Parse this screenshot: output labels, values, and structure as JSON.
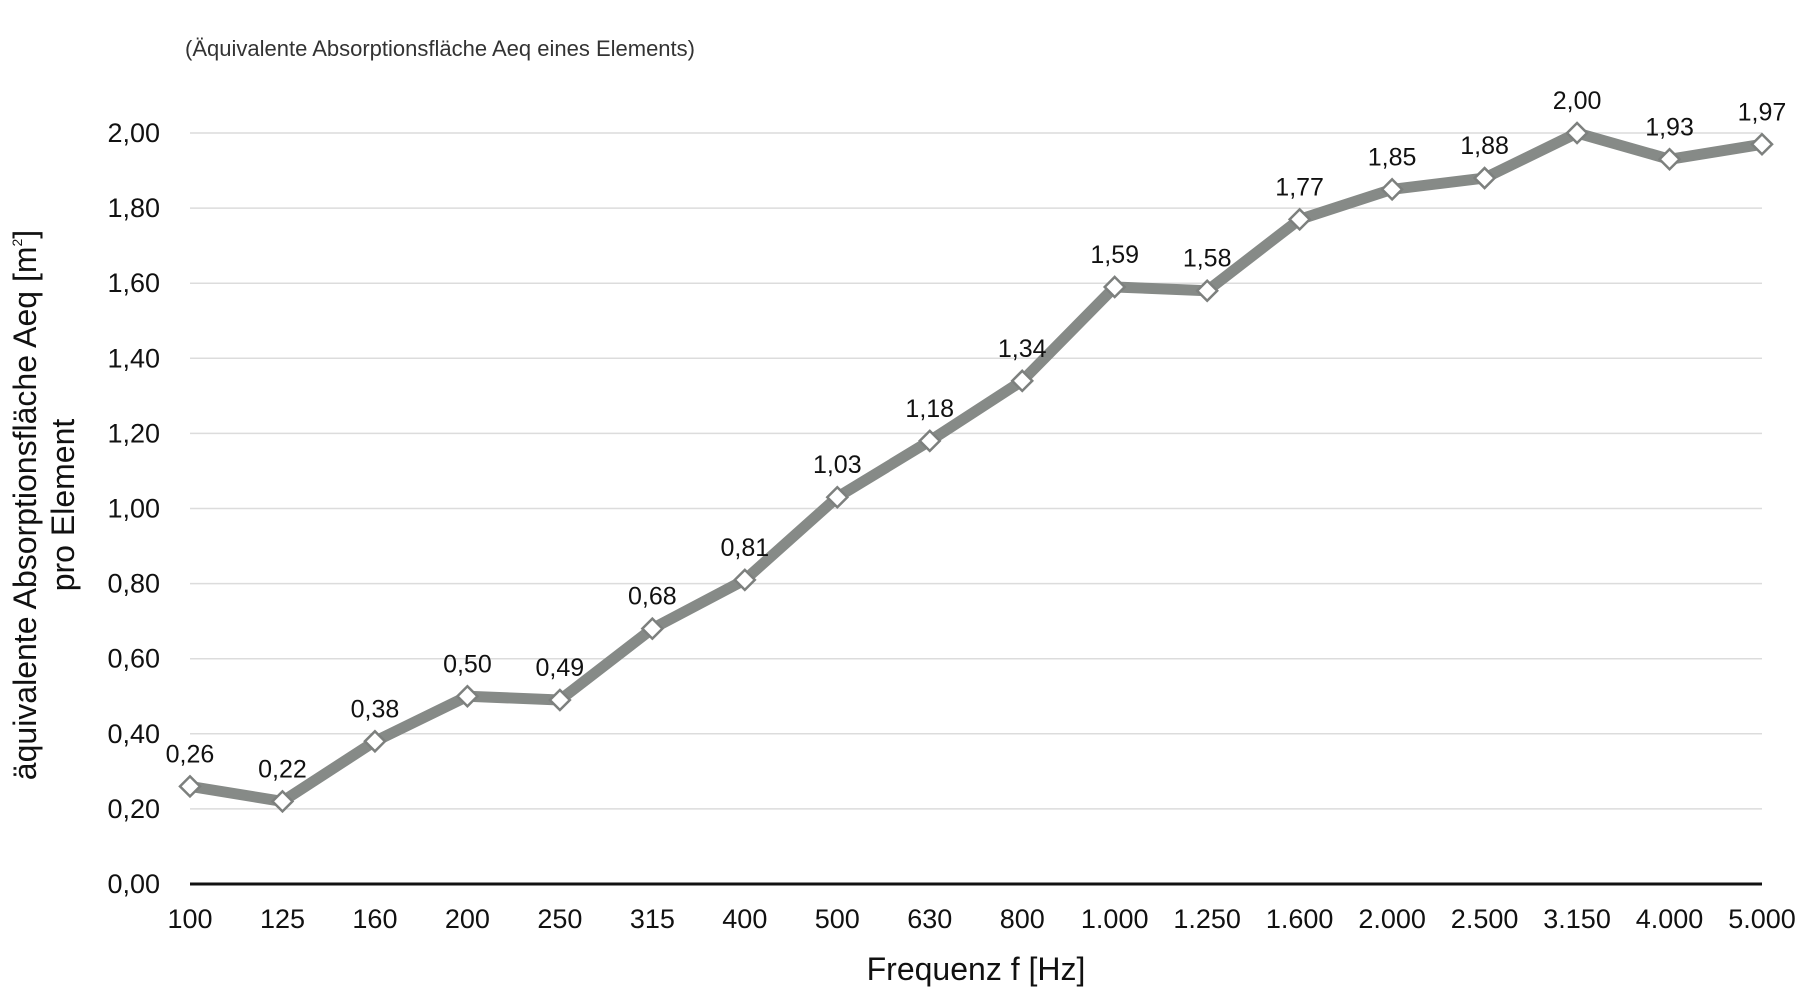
{
  "chart_data": {
    "type": "line",
    "subtitle": "(Äquivalente Absorptionsfläche Aeq eines Elements)",
    "xlabel": "Frequenz f [Hz]",
    "ylabel_line1": "äquivalente Absorptionsfläche Aeq [m",
    "ylabel_sup": "2",
    "ylabel_close": "]",
    "ylabel_line2": "pro Element",
    "categories": [
      "100",
      "125",
      "160",
      "200",
      "250",
      "315",
      "400",
      "500",
      "630",
      "800",
      "1.000",
      "1.250",
      "1.600",
      "2.000",
      "2.500",
      "3.150",
      "4.000",
      "5.000"
    ],
    "series": [
      {
        "values": [
          0.26,
          0.22,
          0.38,
          0.5,
          0.49,
          0.68,
          0.81,
          1.03,
          1.18,
          1.34,
          1.59,
          1.58,
          1.77,
          1.85,
          1.88,
          2.0,
          1.93,
          1.97
        ],
        "labels": [
          "0,26",
          "0,22",
          "0,38",
          "0,50",
          "0,49",
          "0,68",
          "0,81",
          "1,03",
          "1,18",
          "1,34",
          "1,59",
          "1,58",
          "1,77",
          "1,85",
          "1,88",
          "2,00",
          "1,93",
          "1,97"
        ],
        "line_color": "#868a87",
        "marker": "diamond",
        "marker_fill": "#ffffff",
        "marker_stroke": "#7d807e"
      }
    ],
    "yticks": [
      0.0,
      0.2,
      0.4,
      0.6,
      0.8,
      1.0,
      1.2,
      1.4,
      1.6,
      1.8,
      2.0
    ],
    "ytick_labels": [
      "0,00",
      "0,20",
      "0,40",
      "0,60",
      "0,80",
      "1,00",
      "1,20",
      "1,40",
      "1,60",
      "1,80",
      "2,00"
    ],
    "ylim": [
      0,
      2.0
    ],
    "grid": "horizontal",
    "legend": "none",
    "colors": {
      "grid": "#dcdcdc",
      "axis": "#111111",
      "line": "#868a87"
    }
  }
}
